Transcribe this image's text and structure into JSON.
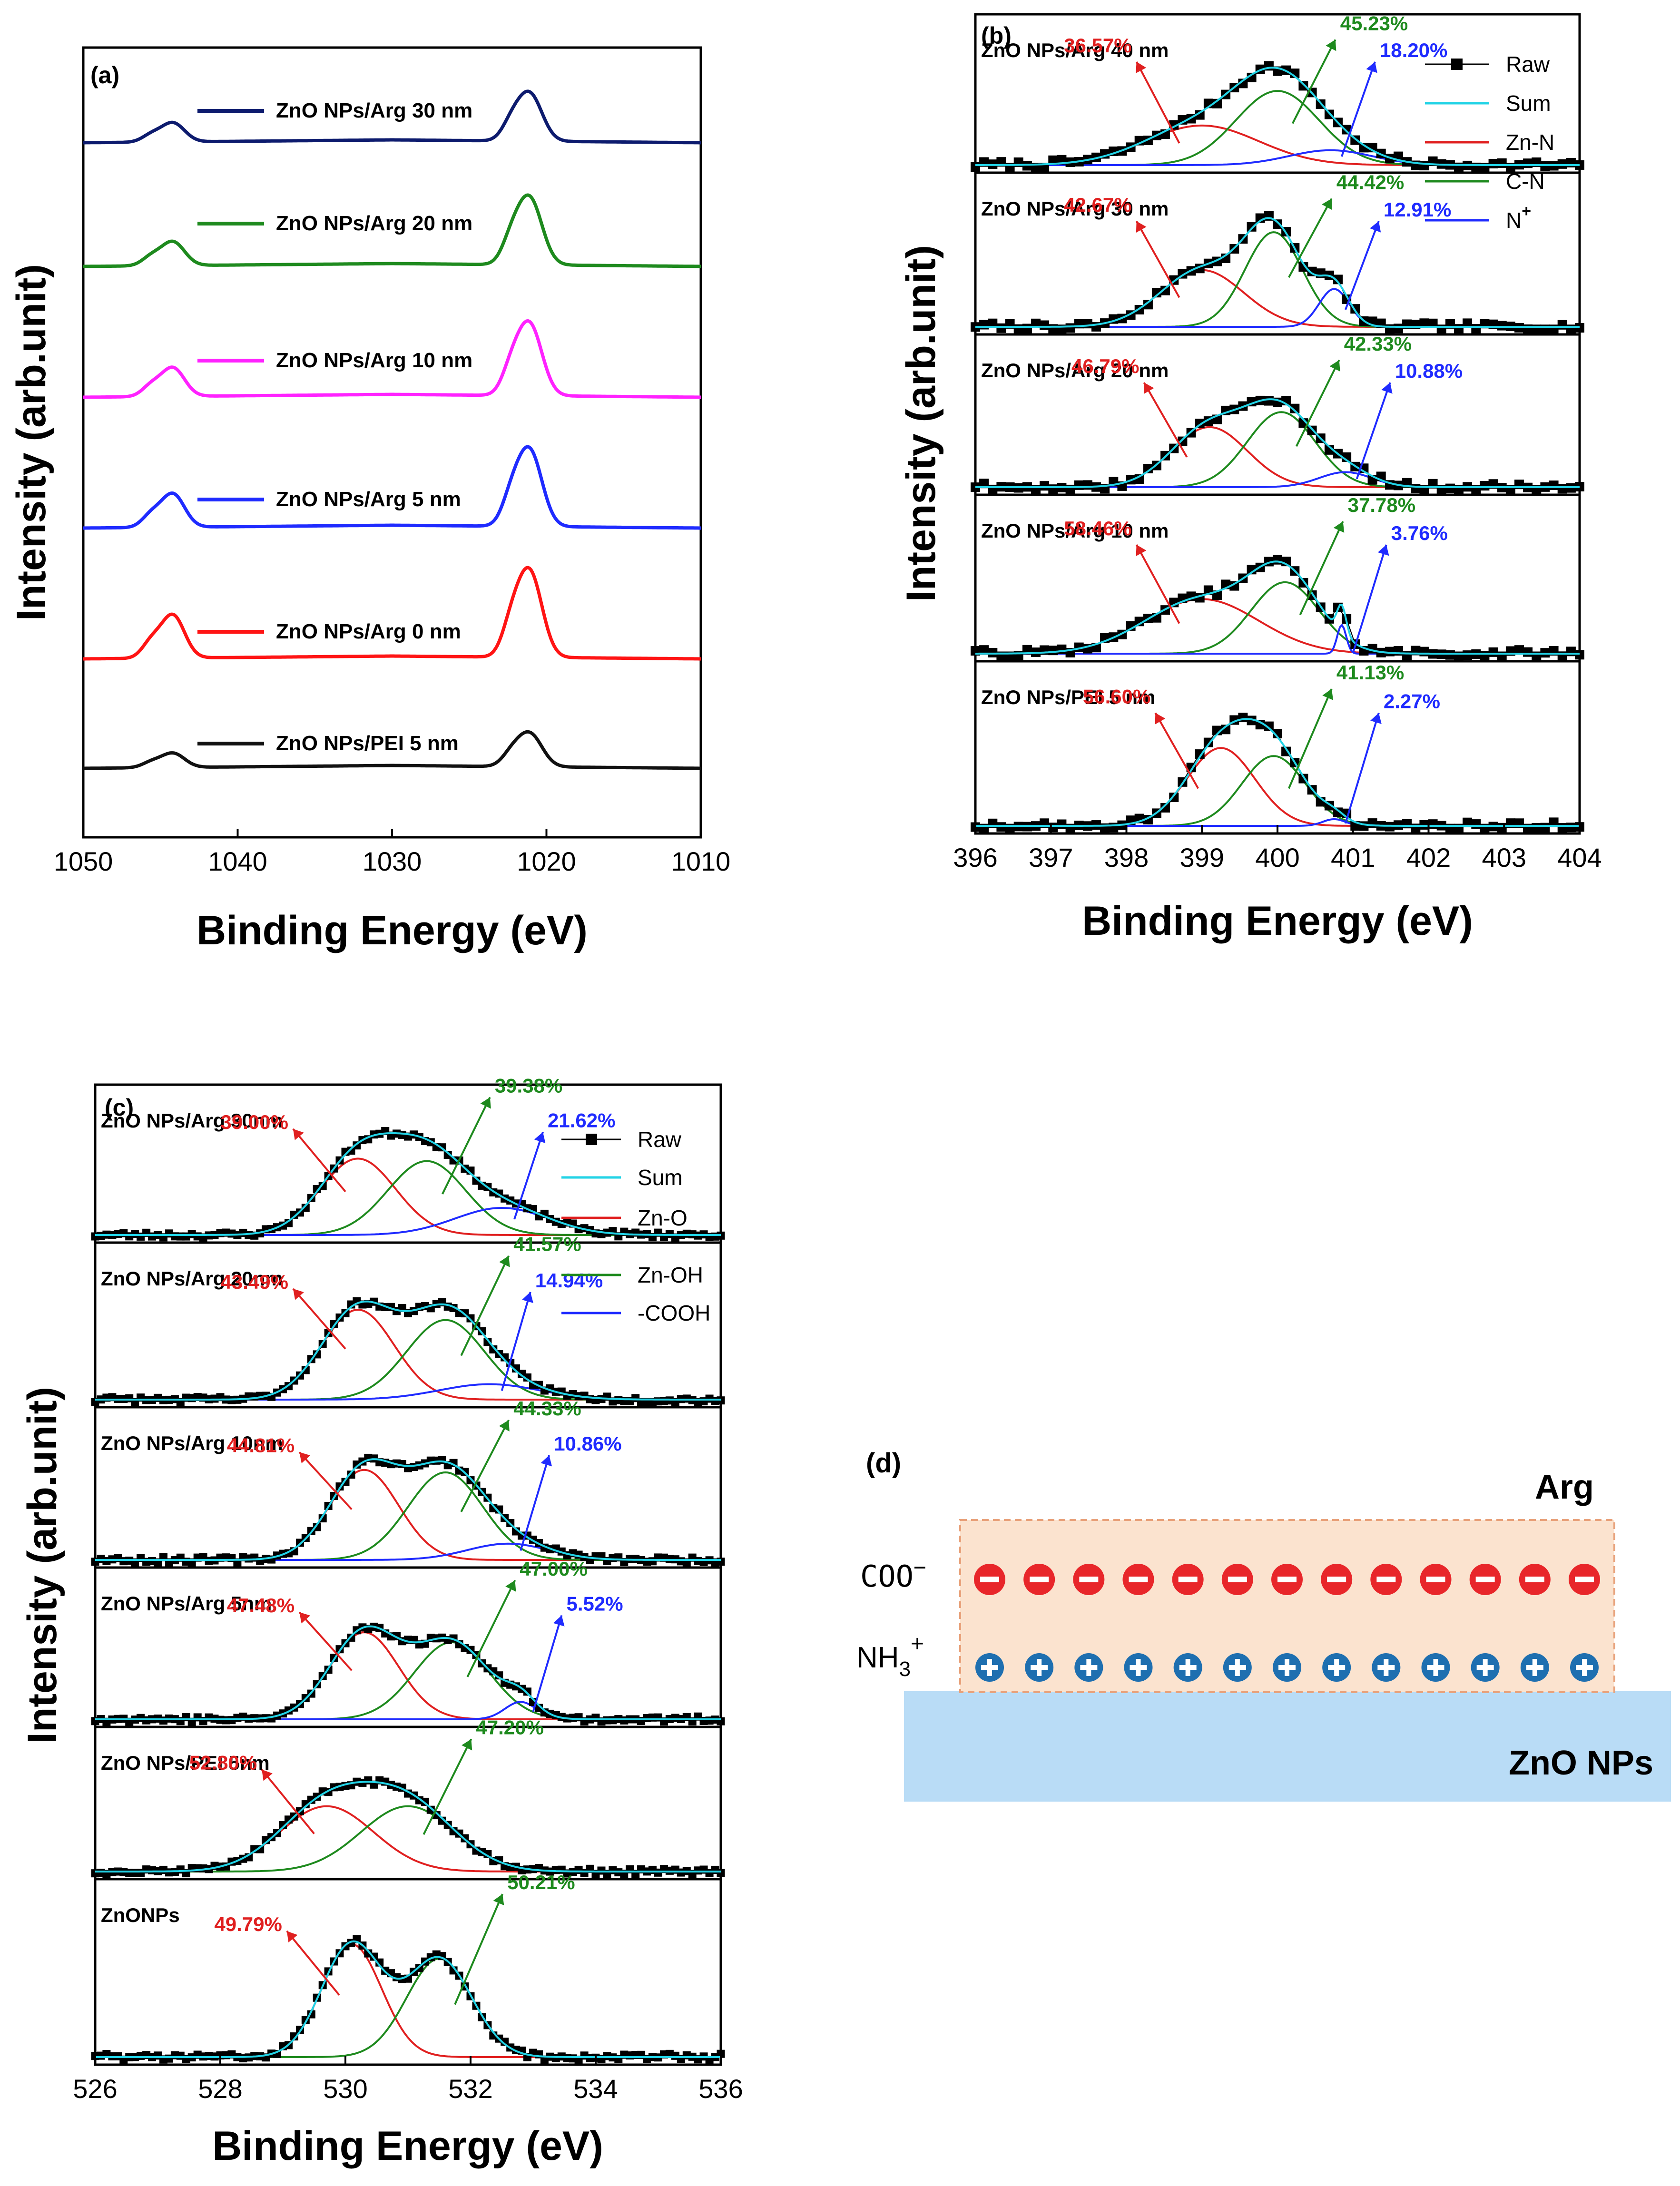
{
  "chart_data": [
    {
      "id": "a",
      "type": "line",
      "panel_label": "(a)",
      "xlabel": "Binding Energy (eV)",
      "ylabel": "Intensity (arb.unit)",
      "xlim": [
        1050,
        1010
      ],
      "xticks": [
        "1050",
        "1040",
        "1030",
        "1020",
        "1010"
      ],
      "series": [
        {
          "name": "ZnO NPs/Arg 30 nm",
          "color": "#0d1b6e",
          "peaks": [
            0.4,
            1.0
          ]
        },
        {
          "name": "ZnO NPs/Arg 20 nm",
          "color": "#1e8a1e",
          "peaks": [
            0.5,
            1.4
          ]
        },
        {
          "name": "ZnO NPs/Arg 10 nm",
          "color": "#ff22ff",
          "peaks": [
            0.6,
            1.5
          ]
        },
        {
          "name": "ZnO NPs/Arg 5 nm",
          "color": "#1f2bff",
          "peaks": [
            0.7,
            1.6
          ]
        },
        {
          "name": "ZnO NPs/Arg 0 nm",
          "color": "#ff1414",
          "peaks": [
            0.9,
            1.8
          ]
        },
        {
          "name": "ZnO NPs/PEI 5 nm",
          "color": "#111111",
          "peaks": [
            0.3,
            0.7
          ]
        }
      ]
    },
    {
      "id": "b",
      "type": "scatter",
      "panel_label": "(b)",
      "xlabel": "Binding Energy (eV)",
      "ylabel": "Intensity (arb.unit)",
      "xlim": [
        396,
        404
      ],
      "xticks": [
        "396",
        "397",
        "398",
        "399",
        "400",
        "401",
        "402",
        "403",
        "404"
      ],
      "legend": [
        {
          "label": "Raw",
          "color": "#000000",
          "kind": "marker"
        },
        {
          "label": "Sum",
          "color": "#22d3e6",
          "kind": "line"
        },
        {
          "label": "Zn-N",
          "color": "#e02020",
          "kind": "line"
        },
        {
          "label": "C-N",
          "color": "#1e8a1e",
          "kind": "line"
        },
        {
          "label": "N",
          "label_sup": "+",
          "color": "#1f2bff",
          "kind": "line"
        }
      ],
      "subpanels": [
        {
          "sample": "ZnO NPs/Arg 40 nm",
          "components": [
            {
              "name": "Zn-N",
              "percent": "36.57%",
              "center": 399.0,
              "width": 0.75,
              "height": 0.32
            },
            {
              "name": "C-N",
              "percent": "45.23%",
              "center": 400.0,
              "width": 0.55,
              "height": 0.6
            },
            {
              "name": "N+",
              "percent": "18.20%",
              "center": 400.7,
              "width": 0.55,
              "height": 0.12
            }
          ]
        },
        {
          "sample": "ZnO NPs/Arg 30 nm",
          "components": [
            {
              "name": "Zn-N",
              "percent": "42.67%",
              "center": 399.0,
              "width": 0.55,
              "height": 0.45
            },
            {
              "name": "C-N",
              "percent": "44.42%",
              "center": 399.95,
              "width": 0.38,
              "height": 0.75
            },
            {
              "name": "N+",
              "percent": "12.91%",
              "center": 400.75,
              "width": 0.2,
              "height": 0.3
            }
          ]
        },
        {
          "sample": "ZnO NPs/Arg 20 nm",
          "components": [
            {
              "name": "Zn-N",
              "percent": "46.79%",
              "center": 399.1,
              "width": 0.5,
              "height": 0.48
            },
            {
              "name": "C-N",
              "percent": "42.33%",
              "center": 400.05,
              "width": 0.45,
              "height": 0.6
            },
            {
              "name": "N+",
              "percent": "10.88%",
              "center": 400.9,
              "width": 0.35,
              "height": 0.12
            }
          ]
        },
        {
          "sample": "ZnO NPs/Arg 10 nm",
          "components": [
            {
              "name": "Zn-N",
              "percent": "58.46%",
              "center": 399.0,
              "width": 0.75,
              "height": 0.42
            },
            {
              "name": "C-N",
              "percent": "37.78%",
              "center": 400.1,
              "width": 0.45,
              "height": 0.55
            },
            {
              "name": "N+",
              "percent": "3.76%",
              "center": 400.85,
              "width": 0.06,
              "height": 0.22
            }
          ]
        },
        {
          "sample": "ZnO NPs/PEI 5 nm",
          "components": [
            {
              "name": "Zn-N",
              "percent": "56.60%",
              "center": 399.25,
              "width": 0.45,
              "height": 0.58
            },
            {
              "name": "C-N",
              "percent": "41.13%",
              "center": 399.95,
              "width": 0.42,
              "height": 0.52
            },
            {
              "name": "N+",
              "percent": "2.27%",
              "center": 400.75,
              "width": 0.15,
              "height": 0.05
            }
          ]
        }
      ]
    },
    {
      "id": "c",
      "type": "scatter",
      "panel_label": "(c)",
      "xlabel": "Binding Energy (eV)",
      "ylabel": "Intensity (arb.unit)",
      "xlim": [
        526,
        536
      ],
      "xticks": [
        "526",
        "528",
        "530",
        "532",
        "534",
        "536"
      ],
      "legend": [
        {
          "label": "Raw",
          "color": "#000000",
          "kind": "marker"
        },
        {
          "label": "Sum",
          "color": "#22d3e6",
          "kind": "line"
        },
        {
          "label": "Zn-O",
          "color": "#e02020",
          "kind": "line"
        },
        {
          "label": "Zn-OH",
          "color": "#1e8a1e",
          "kind": "line"
        },
        {
          "label": "-COOH",
          "color": "#1f2bff",
          "kind": "line"
        }
      ],
      "subpanels": [
        {
          "sample": "ZnO NPs/Arg 30nm",
          "components": [
            {
              "name": "Zn-O",
              "percent": "39.00%",
              "center": 530.2,
              "width": 0.6,
              "height": 0.62
            },
            {
              "name": "Zn-OH",
              "percent": "39.38%",
              "center": 531.3,
              "width": 0.62,
              "height": 0.6
            },
            {
              "name": "-COOH",
              "percent": "21.62%",
              "center": 532.5,
              "width": 0.75,
              "height": 0.22
            }
          ]
        },
        {
          "sample": "ZnO NPs/Arg 20nm",
          "components": [
            {
              "name": "Zn-O",
              "percent": "43.49%",
              "center": 530.2,
              "width": 0.58,
              "height": 0.7
            },
            {
              "name": "Zn-OH",
              "percent": "41.57%",
              "center": 531.6,
              "width": 0.62,
              "height": 0.62
            },
            {
              "name": "-COOH",
              "percent": "14.94%",
              "center": 532.3,
              "width": 0.8,
              "height": 0.12
            }
          ]
        },
        {
          "sample": "ZnO NPs/Arg 10nm",
          "components": [
            {
              "name": "Zn-O",
              "percent": "44.81%",
              "center": 530.3,
              "width": 0.55,
              "height": 0.72
            },
            {
              "name": "Zn-OH",
              "percent": "44.33%",
              "center": 531.6,
              "width": 0.6,
              "height": 0.7
            },
            {
              "name": "-COOH",
              "percent": "10.86%",
              "center": 532.6,
              "width": 0.65,
              "height": 0.13
            }
          ]
        },
        {
          "sample": "ZnO NPs/Arg 5nm",
          "components": [
            {
              "name": "Zn-O",
              "percent": "47.48%",
              "center": 530.3,
              "width": 0.55,
              "height": 0.7
            },
            {
              "name": "Zn-OH",
              "percent": "47.00%",
              "center": 531.7,
              "width": 0.6,
              "height": 0.62
            },
            {
              "name": "-COOH",
              "percent": "5.52%",
              "center": 532.8,
              "width": 0.25,
              "height": 0.14
            }
          ]
        },
        {
          "sample": "ZnO NPs/PEI 5nm",
          "components": [
            {
              "name": "Zn-O",
              "percent": "52.80%",
              "center": 529.7,
              "width": 0.75,
              "height": 0.55
            },
            {
              "name": "Zn-OH",
              "percent": "47.20%",
              "center": 531.0,
              "width": 0.75,
              "height": 0.55
            }
          ]
        },
        {
          "sample": "ZnONPs",
          "components": [
            {
              "name": "Zn-O",
              "percent": "49.79%",
              "center": 530.1,
              "width": 0.48,
              "height": 0.78
            },
            {
              "name": "Zn-OH",
              "percent": "50.21%",
              "center": 531.5,
              "width": 0.52,
              "height": 0.68
            }
          ]
        }
      ]
    }
  ],
  "schematic": {
    "panel_label": "(d)",
    "layer_label": "Arg",
    "substrate_label": "ZnO NPs",
    "anion_label": "COO",
    "anion_sup": "−",
    "cation_label": "NH",
    "cation_sub": "3",
    "cation_sup": "+",
    "anion_symbol": "−",
    "cation_symbol": "+",
    "count": 13,
    "colors": {
      "layer_fill": "#fbe3cf",
      "layer_border": "#e8a27b",
      "substrate_fill": "#b9dcf6",
      "anion": "#e8262a",
      "cation": "#1e6fb0"
    }
  }
}
